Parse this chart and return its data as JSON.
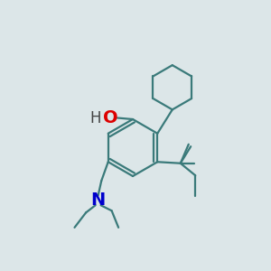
{
  "background_color": "#dce6e8",
  "bond_color": "#3a7a7a",
  "atom_colors": {
    "O": "#dd0000",
    "N": "#0000cc",
    "H": "#444444"
  },
  "line_width": 1.6,
  "font_size_O": 14,
  "font_size_H": 12,
  "font_size_N": 14
}
